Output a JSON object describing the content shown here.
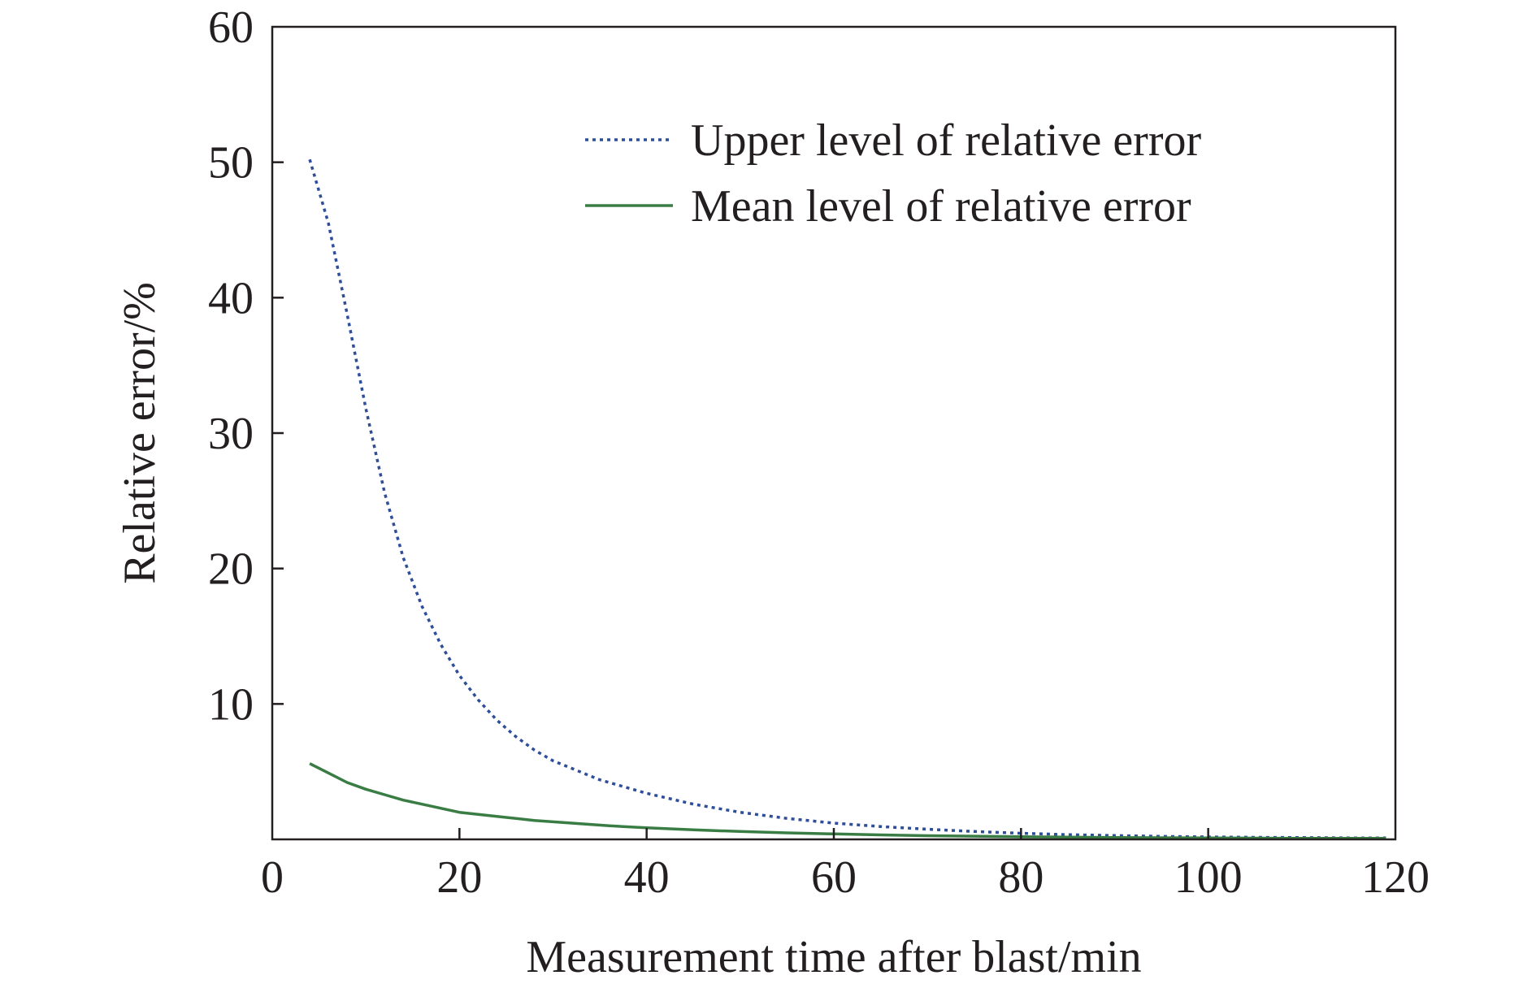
{
  "chart_data": {
    "type": "line",
    "xlabel": "Measurement time after blast/min",
    "ylabel": "Relative error/%",
    "xlim": [
      0,
      120
    ],
    "ylim": [
      0,
      60
    ],
    "x_ticks": [
      "0",
      "20",
      "40",
      "60",
      "80",
      "100",
      "120"
    ],
    "y_ticks": [
      "10",
      "20",
      "30",
      "40",
      "50",
      "60"
    ],
    "grid": false,
    "legend_position": "top-right",
    "series": [
      {
        "name": "Upper level of relative error",
        "style": "dotted",
        "color": "#2e4e9a",
        "x": [
          4,
          6,
          8,
          10,
          12,
          14,
          16,
          18,
          20,
          22,
          24,
          26,
          28,
          30,
          35,
          40,
          45,
          50,
          55,
          60,
          65,
          70,
          75,
          80,
          85,
          90,
          95,
          100,
          105,
          110,
          115,
          119
        ],
        "y": [
          50.2,
          45.5,
          38.8,
          31.8,
          25.6,
          20.8,
          17.2,
          14.4,
          12.1,
          10.3,
          8.8,
          7.6,
          6.6,
          5.8,
          4.4,
          3.4,
          2.6,
          2.0,
          1.55,
          1.2,
          0.95,
          0.75,
          0.58,
          0.45,
          0.35,
          0.28,
          0.22,
          0.18,
          0.15,
          0.13,
          0.11,
          0.1
        ]
      },
      {
        "name": "Mean level of relative error",
        "style": "solid",
        "color": "#3a7d44",
        "x": [
          4,
          6,
          8,
          10,
          12,
          14,
          16,
          18,
          20,
          24,
          28,
          32,
          36,
          40,
          45,
          50,
          55,
          60,
          65,
          70,
          80,
          90,
          100,
          110,
          119
        ],
        "y": [
          5.6,
          4.9,
          4.2,
          3.7,
          3.3,
          2.9,
          2.6,
          2.3,
          2.0,
          1.7,
          1.4,
          1.2,
          1.0,
          0.85,
          0.7,
          0.58,
          0.48,
          0.4,
          0.33,
          0.27,
          0.19,
          0.14,
          0.1,
          0.08,
          0.07
        ]
      }
    ]
  }
}
